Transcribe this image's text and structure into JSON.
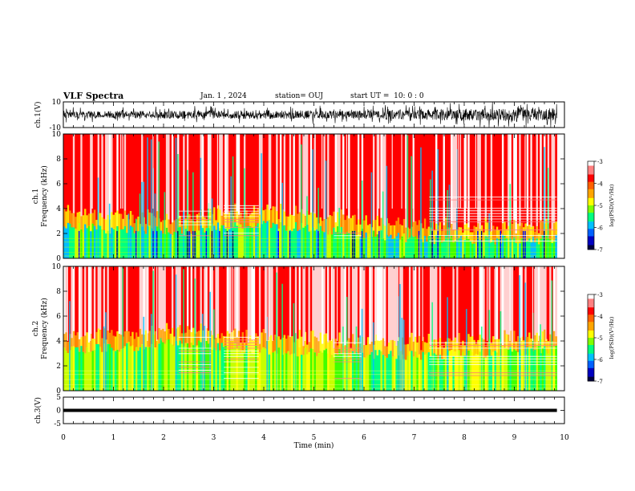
{
  "header": {
    "title": "VLF Spectra",
    "date": "Jan. 1 , 2024",
    "station": "station= OUJ",
    "start": "start UT =  10: 0 : 0"
  },
  "colors": {
    "colormap": [
      "#000080",
      "#0000ff",
      "#00bfff",
      "#00ff80",
      "#40ff00",
      "#c8ff00",
      "#ffff00",
      "#ffa500",
      "#ff3000",
      "#ff0000",
      "#ffd0d0",
      "#ffffff"
    ]
  },
  "chart_data": [
    {
      "type": "line",
      "panel": "waveform-ch1",
      "ylabel": "ch.1(V)",
      "yticks": [
        "10",
        "-10"
      ],
      "ylim": [
        -10,
        10
      ],
      "xlim": [
        0,
        10
      ],
      "data_span_min": [
        0,
        9.85
      ],
      "amplitude_envelope": {
        "x": [
          0,
          2,
          4,
          6,
          7.2,
          8,
          9,
          9.85
        ],
        "y": [
          5,
          5.5,
          6,
          6,
          7,
          8.5,
          9,
          9
        ]
      }
    },
    {
      "type": "heatmap",
      "panel": "spectrogram-ch1",
      "ylabel": "ch.1\nFrequency (kHz)",
      "ylim": [
        0,
        10
      ],
      "yticks": [
        "0",
        "2",
        "4",
        "6",
        "8",
        "10"
      ],
      "xlim": [
        0,
        10
      ],
      "data_span_min": [
        0,
        9.85
      ],
      "colorbar": {
        "label": "log(PSD)(V²/Hz)",
        "range": [
          -7,
          -3
        ],
        "ticks": [
          "-3",
          "-4",
          "-5",
          "-6",
          "-7"
        ]
      },
      "features": {
        "low_band_top_khz": [
          {
            "x": 0,
            "kHz": 2.5
          },
          {
            "x": 2.3,
            "kHz": 2.2
          },
          {
            "x": 4,
            "kHz": 2.8
          },
          {
            "x": 5.5,
            "kHz": 2.2
          },
          {
            "x": 7.2,
            "kHz": 1.5
          },
          {
            "x": 9.85,
            "kHz": 1.5
          }
        ],
        "horizontal_line_groups": [
          {
            "x": [
              2.3,
              2.95
            ],
            "kHz": [
              1.6,
              4.5
            ]
          },
          {
            "x": [
              3.2,
              3.9
            ],
            "kHz": [
              1.6,
              4.5
            ]
          },
          {
            "x": [
              5.4,
              5.95
            ],
            "kHz": [
              1.6,
              2.2
            ]
          },
          {
            "x": [
              7.3,
              9.85
            ],
            "kHz": [
              1.4,
              5.0
            ]
          }
        ]
      }
    },
    {
      "type": "heatmap",
      "panel": "spectrogram-ch2",
      "ylabel": "ch.2\nFrequency (kHz)",
      "ylim": [
        0,
        10
      ],
      "yticks": [
        "0",
        "2",
        "4",
        "6",
        "8",
        "10"
      ],
      "xlim": [
        0,
        10
      ],
      "data_span_min": [
        0,
        9.85
      ],
      "colorbar": {
        "label": "log(PSD)(V²/Hz)",
        "range": [
          -7,
          -3
        ],
        "ticks": [
          "-3",
          "-4",
          "-5",
          "-6",
          "-7"
        ]
      },
      "features": {
        "low_band_top_khz": [
          {
            "x": 0,
            "kHz": 3.2
          },
          {
            "x": 2.3,
            "kHz": 3.8
          },
          {
            "x": 4,
            "kHz": 3.2
          },
          {
            "x": 5.5,
            "kHz": 3.0
          },
          {
            "x": 7.2,
            "kHz": 2.8
          },
          {
            "x": 9.85,
            "kHz": 3.3
          }
        ],
        "horizontal_line_groups": [
          {
            "x": [
              2.3,
              2.95
            ],
            "kHz": [
              1.0,
              4.5
            ]
          },
          {
            "x": [
              3.2,
              3.9
            ],
            "kHz": [
              1.0,
              4.5
            ]
          },
          {
            "x": [
              5.4,
              5.95
            ],
            "kHz": [
              1.0,
              4.3
            ]
          },
          {
            "x": [
              7.3,
              9.85
            ],
            "kHz": [
              1.0,
              4.3
            ]
          }
        ]
      }
    },
    {
      "type": "line",
      "panel": "waveform-ch3",
      "ylabel": "ch.3(V)",
      "yticks": [
        "5",
        "0",
        "-5"
      ],
      "ylim": [
        -5,
        5
      ],
      "xlim": [
        0,
        10
      ],
      "data_span_min": [
        0,
        9.85
      ],
      "x": [
        0,
        9.85
      ],
      "y": [
        0,
        0
      ]
    }
  ],
  "x_axis": {
    "label": "Time (min)",
    "ticks": [
      "0",
      "1",
      "2",
      "3",
      "4",
      "5",
      "6",
      "7",
      "8",
      "9",
      "10"
    ]
  }
}
